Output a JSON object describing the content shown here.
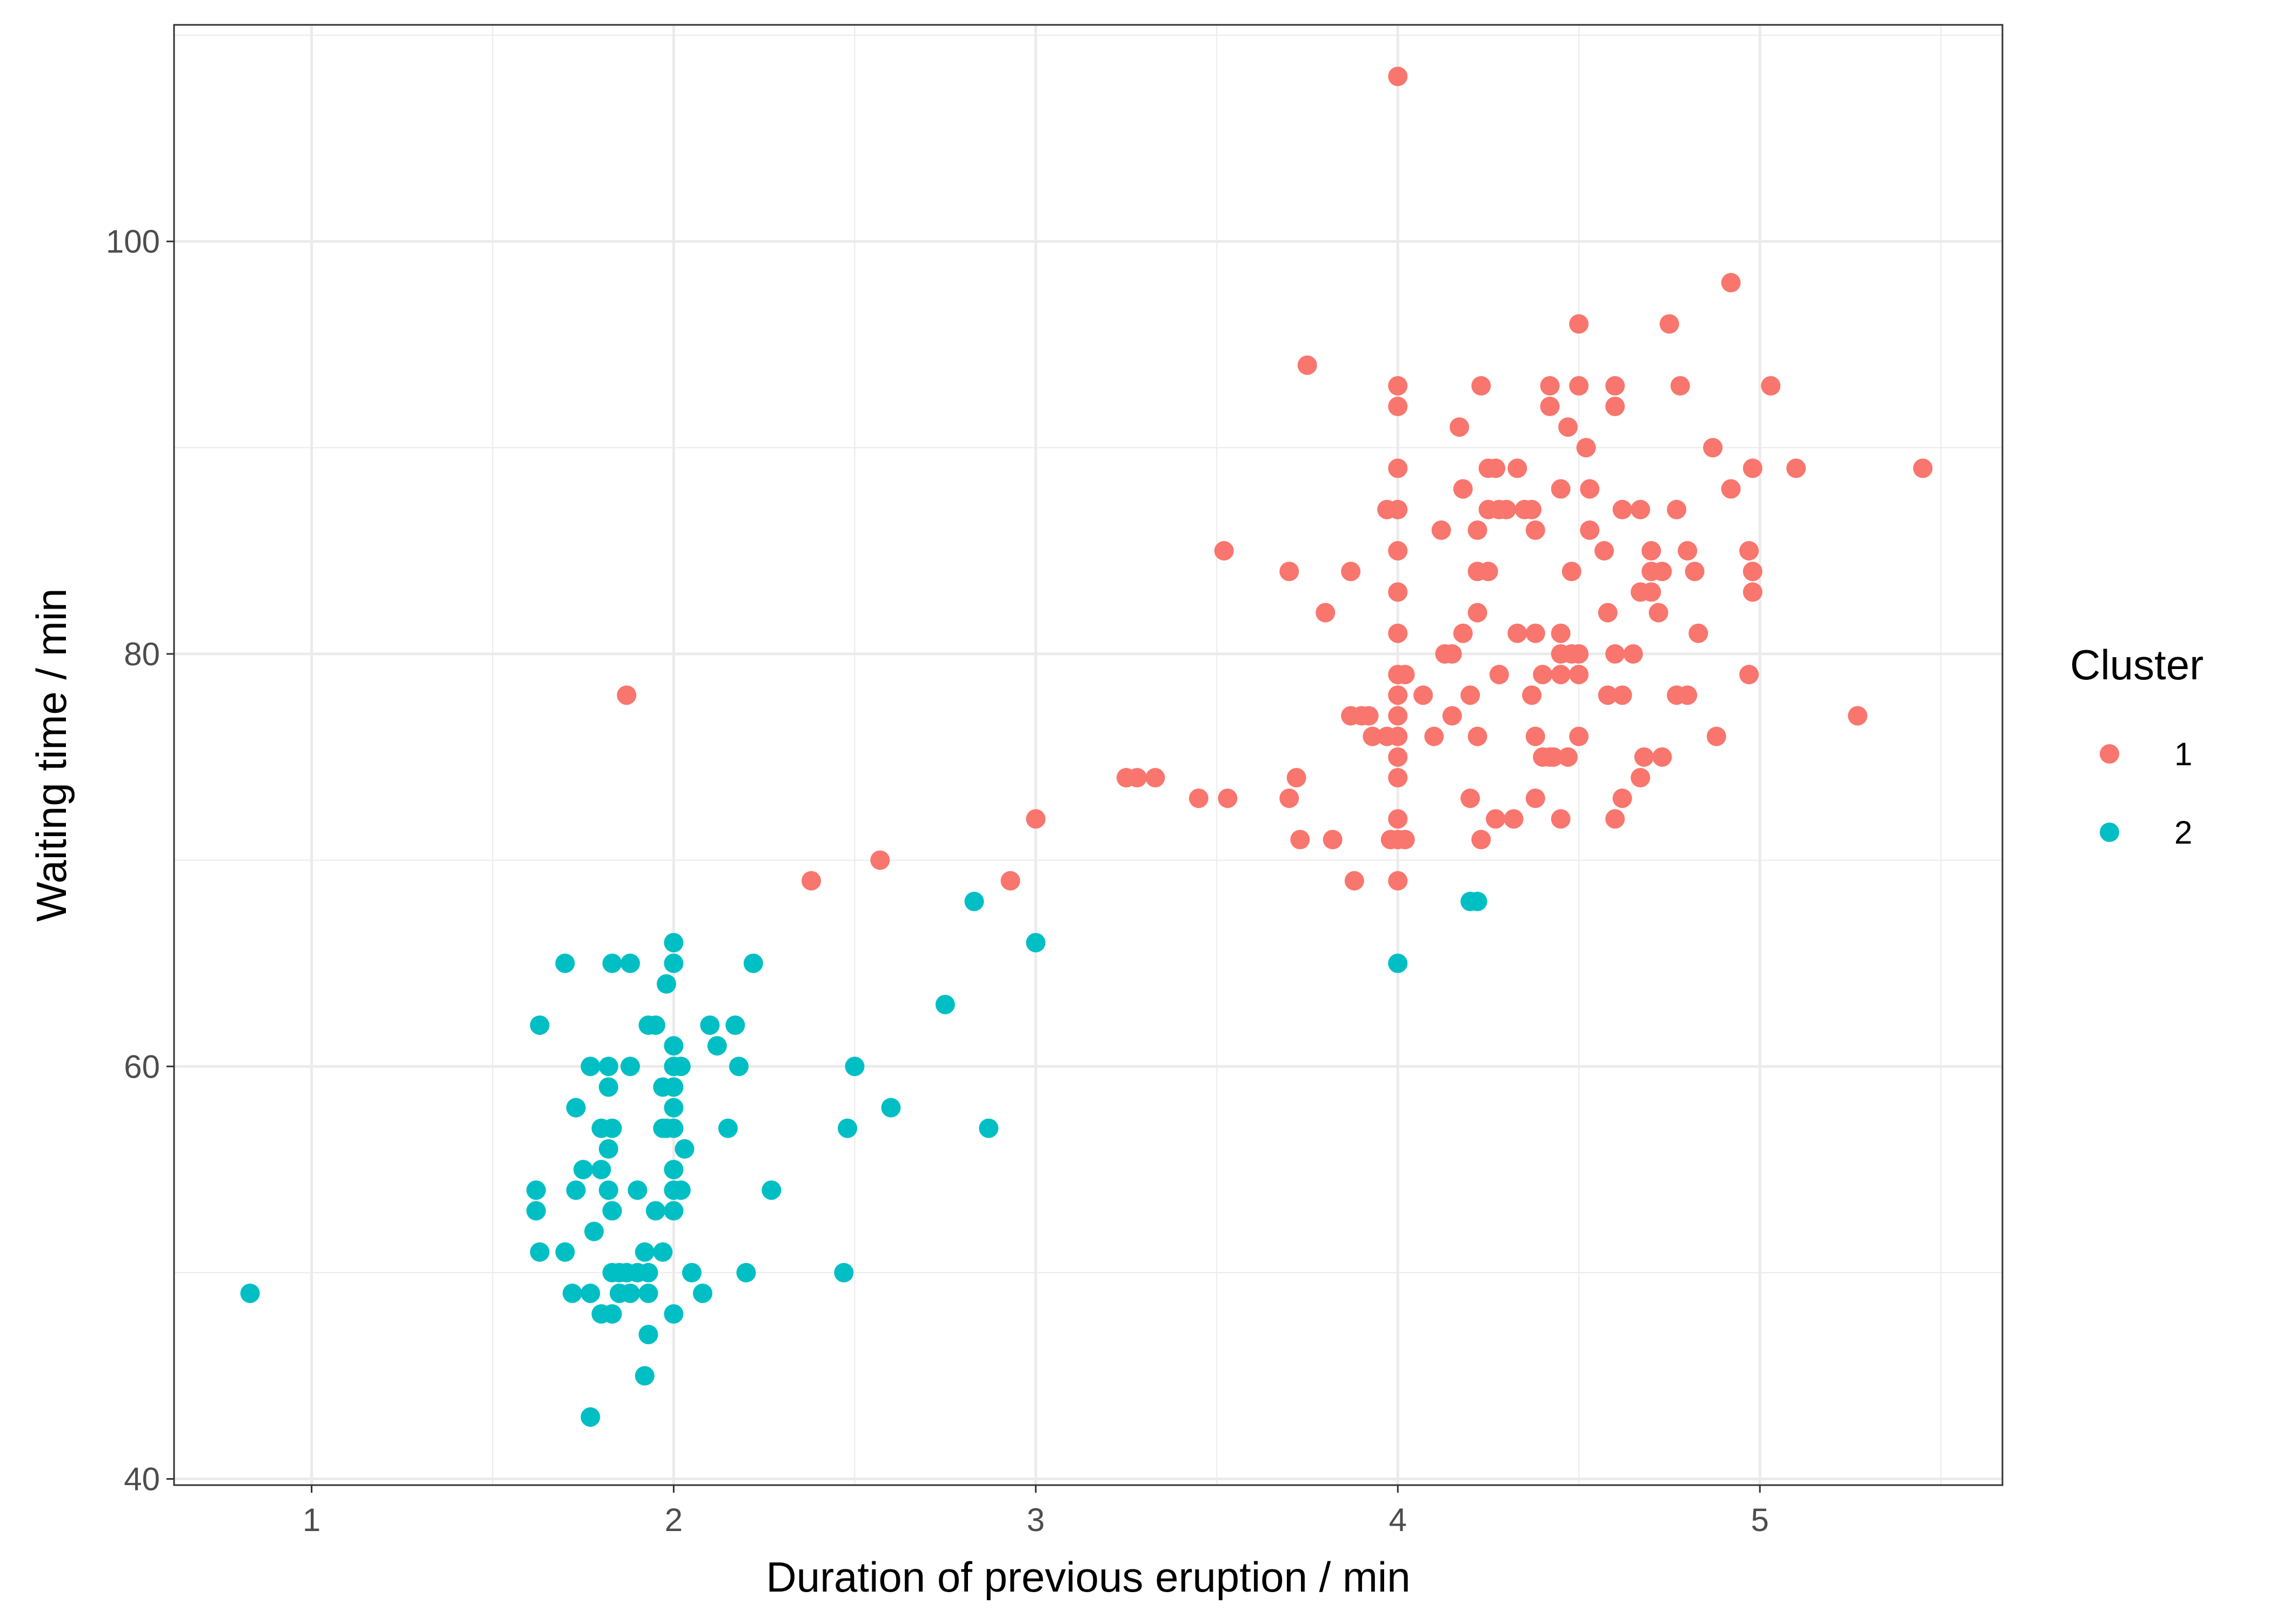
{
  "chart_data": {
    "type": "scatter",
    "xlabel": "Duration of previous eruption / min",
    "ylabel": "Waiting time / min",
    "xlim": [
      0.62,
      5.67
    ],
    "ylim": [
      39.7,
      110.5
    ],
    "x_ticks": [
      1,
      2,
      3,
      4,
      5
    ],
    "x_tick_labels": [
      "1",
      "2",
      "3",
      "4",
      "5"
    ],
    "y_ticks": [
      40,
      60,
      80,
      100
    ],
    "y_tick_labels": [
      "40",
      "60",
      "80",
      "100"
    ],
    "grid": true,
    "legend": {
      "title": "Cluster",
      "placement": "right",
      "entries": [
        "1",
        "2"
      ]
    },
    "colors": {
      "1": "#F8766D",
      "2": "#00BFC4"
    },
    "series": [
      {
        "name": "1",
        "color": "#F8766D",
        "points": [
          [
            4.0,
            108
          ],
          [
            1.87,
            78
          ],
          [
            2.38,
            69
          ],
          [
            2.57,
            70
          ],
          [
            2.93,
            69
          ],
          [
            3.0,
            72
          ],
          [
            3.25,
            74
          ],
          [
            3.28,
            74
          ],
          [
            3.33,
            74
          ],
          [
            3.45,
            73
          ],
          [
            3.53,
            73
          ],
          [
            3.52,
            85
          ],
          [
            3.7,
            84
          ],
          [
            3.7,
            73
          ],
          [
            3.72,
            74
          ],
          [
            3.73,
            71
          ],
          [
            3.75,
            94
          ],
          [
            3.8,
            82
          ],
          [
            3.82,
            71
          ],
          [
            3.87,
            84
          ],
          [
            3.87,
            77
          ],
          [
            3.88,
            69
          ],
          [
            3.9,
            77
          ],
          [
            3.92,
            77
          ],
          [
            3.93,
            76
          ],
          [
            3.97,
            87
          ],
          [
            3.97,
            76
          ],
          [
            3.98,
            71
          ],
          [
            4.0,
            93
          ],
          [
            4.0,
            92
          ],
          [
            4.0,
            89
          ],
          [
            4.0,
            87
          ],
          [
            4.0,
            85
          ],
          [
            4.0,
            83
          ],
          [
            4.0,
            81
          ],
          [
            4.0,
            79
          ],
          [
            4.0,
            78
          ],
          [
            4.0,
            77
          ],
          [
            4.0,
            76
          ],
          [
            4.0,
            75
          ],
          [
            4.0,
            74
          ],
          [
            4.0,
            72
          ],
          [
            4.0,
            71
          ],
          [
            4.0,
            69
          ],
          [
            4.02,
            79
          ],
          [
            4.02,
            71
          ],
          [
            4.07,
            78
          ],
          [
            4.1,
            76
          ],
          [
            4.12,
            86
          ],
          [
            4.13,
            80
          ],
          [
            4.15,
            77
          ],
          [
            4.15,
            80
          ],
          [
            4.17,
            91
          ],
          [
            4.18,
            81
          ],
          [
            4.18,
            88
          ],
          [
            4.2,
            78
          ],
          [
            4.2,
            73
          ],
          [
            4.22,
            86
          ],
          [
            4.22,
            76
          ],
          [
            4.22,
            84
          ],
          [
            4.22,
            82
          ],
          [
            4.23,
            71
          ],
          [
            4.23,
            93
          ],
          [
            4.25,
            89
          ],
          [
            4.25,
            87
          ],
          [
            4.25,
            84
          ],
          [
            4.27,
            72
          ],
          [
            4.27,
            89
          ],
          [
            4.28,
            87
          ],
          [
            4.28,
            79
          ],
          [
            4.3,
            87
          ],
          [
            4.32,
            72
          ],
          [
            4.33,
            89
          ],
          [
            4.33,
            81
          ],
          [
            4.35,
            87
          ],
          [
            4.37,
            87
          ],
          [
            4.37,
            78
          ],
          [
            4.38,
            86
          ],
          [
            4.38,
            81
          ],
          [
            4.38,
            76
          ],
          [
            4.38,
            73
          ],
          [
            4.4,
            79
          ],
          [
            4.4,
            75
          ],
          [
            4.42,
            93
          ],
          [
            4.42,
            92
          ],
          [
            4.42,
            75
          ],
          [
            4.43,
            75
          ],
          [
            4.45,
            81
          ],
          [
            4.45,
            80
          ],
          [
            4.45,
            79
          ],
          [
            4.45,
            72
          ],
          [
            4.45,
            88
          ],
          [
            4.47,
            91
          ],
          [
            4.47,
            75
          ],
          [
            4.48,
            84
          ],
          [
            4.48,
            80
          ],
          [
            4.5,
            93
          ],
          [
            4.5,
            96
          ],
          [
            4.5,
            80
          ],
          [
            4.5,
            79
          ],
          [
            4.5,
            76
          ],
          [
            4.52,
            90
          ],
          [
            4.53,
            86
          ],
          [
            4.53,
            88
          ],
          [
            4.57,
            85
          ],
          [
            4.58,
            82
          ],
          [
            4.58,
            78
          ],
          [
            4.6,
            93
          ],
          [
            4.6,
            92
          ],
          [
            4.6,
            80
          ],
          [
            4.6,
            72
          ],
          [
            4.62,
            87
          ],
          [
            4.62,
            78
          ],
          [
            4.62,
            73
          ],
          [
            4.65,
            80
          ],
          [
            4.67,
            87
          ],
          [
            4.67,
            83
          ],
          [
            4.67,
            74
          ],
          [
            4.68,
            75
          ],
          [
            4.7,
            85
          ],
          [
            4.7,
            83
          ],
          [
            4.7,
            84
          ],
          [
            4.72,
            82
          ],
          [
            4.73,
            75
          ],
          [
            4.73,
            84
          ],
          [
            4.75,
            96
          ],
          [
            4.77,
            87
          ],
          [
            4.77,
            78
          ],
          [
            4.78,
            93
          ],
          [
            4.8,
            85
          ],
          [
            4.8,
            78
          ],
          [
            4.82,
            84
          ],
          [
            4.83,
            81
          ],
          [
            4.87,
            90
          ],
          [
            4.88,
            76
          ],
          [
            4.92,
            88
          ],
          [
            4.92,
            98
          ],
          [
            4.97,
            85
          ],
          [
            4.97,
            79
          ],
          [
            4.98,
            84
          ],
          [
            4.98,
            83
          ],
          [
            4.98,
            89
          ],
          [
            5.03,
            93
          ],
          [
            5.1,
            89
          ],
          [
            5.27,
            77
          ],
          [
            5.45,
            89
          ]
        ]
      },
      {
        "name": "2",
        "color": "#00BFC4",
        "points": [
          [
            0.83,
            49
          ],
          [
            1.62,
            54
          ],
          [
            1.62,
            53
          ],
          [
            1.63,
            62
          ],
          [
            1.63,
            51
          ],
          [
            1.7,
            65
          ],
          [
            1.7,
            51
          ],
          [
            1.72,
            49
          ],
          [
            1.73,
            58
          ],
          [
            1.73,
            54
          ],
          [
            1.75,
            55
          ],
          [
            1.77,
            60
          ],
          [
            1.77,
            43
          ],
          [
            1.77,
            49
          ],
          [
            1.78,
            52
          ],
          [
            1.8,
            57
          ],
          [
            1.8,
            55
          ],
          [
            1.8,
            48
          ],
          [
            1.82,
            60
          ],
          [
            1.82,
            59
          ],
          [
            1.82,
            56
          ],
          [
            1.82,
            54
          ],
          [
            1.83,
            65
          ],
          [
            1.83,
            57
          ],
          [
            1.83,
            53
          ],
          [
            1.83,
            50
          ],
          [
            1.83,
            48
          ],
          [
            1.85,
            50
          ],
          [
            1.85,
            49
          ],
          [
            1.87,
            50
          ],
          [
            1.88,
            65
          ],
          [
            1.88,
            60
          ],
          [
            1.88,
            49
          ],
          [
            1.9,
            54
          ],
          [
            1.9,
            50
          ],
          [
            1.92,
            51
          ],
          [
            1.92,
            45
          ],
          [
            1.93,
            62
          ],
          [
            1.93,
            50
          ],
          [
            1.93,
            49
          ],
          [
            1.93,
            47
          ],
          [
            1.95,
            62
          ],
          [
            1.95,
            53
          ],
          [
            1.97,
            59
          ],
          [
            1.97,
            57
          ],
          [
            1.97,
            51
          ],
          [
            1.98,
            64
          ],
          [
            1.98,
            57
          ],
          [
            2.0,
            66
          ],
          [
            2.0,
            65
          ],
          [
            2.0,
            61
          ],
          [
            2.0,
            60
          ],
          [
            2.0,
            59
          ],
          [
            2.0,
            58
          ],
          [
            2.0,
            57
          ],
          [
            2.0,
            55
          ],
          [
            2.0,
            54
          ],
          [
            2.0,
            53
          ],
          [
            2.0,
            48
          ],
          [
            2.02,
            60
          ],
          [
            2.02,
            54
          ],
          [
            2.03,
            56
          ],
          [
            2.05,
            50
          ],
          [
            2.08,
            49
          ],
          [
            2.1,
            62
          ],
          [
            2.12,
            61
          ],
          [
            2.15,
            57
          ],
          [
            2.17,
            62
          ],
          [
            2.18,
            60
          ],
          [
            2.2,
            50
          ],
          [
            2.22,
            65
          ],
          [
            2.27,
            54
          ],
          [
            2.47,
            50
          ],
          [
            2.48,
            57
          ],
          [
            2.5,
            60
          ],
          [
            2.6,
            58
          ],
          [
            2.75,
            63
          ],
          [
            2.83,
            68
          ],
          [
            2.87,
            57
          ],
          [
            3.0,
            66
          ],
          [
            4.0,
            65
          ],
          [
            4.2,
            68
          ],
          [
            4.22,
            68
          ]
        ]
      }
    ]
  }
}
